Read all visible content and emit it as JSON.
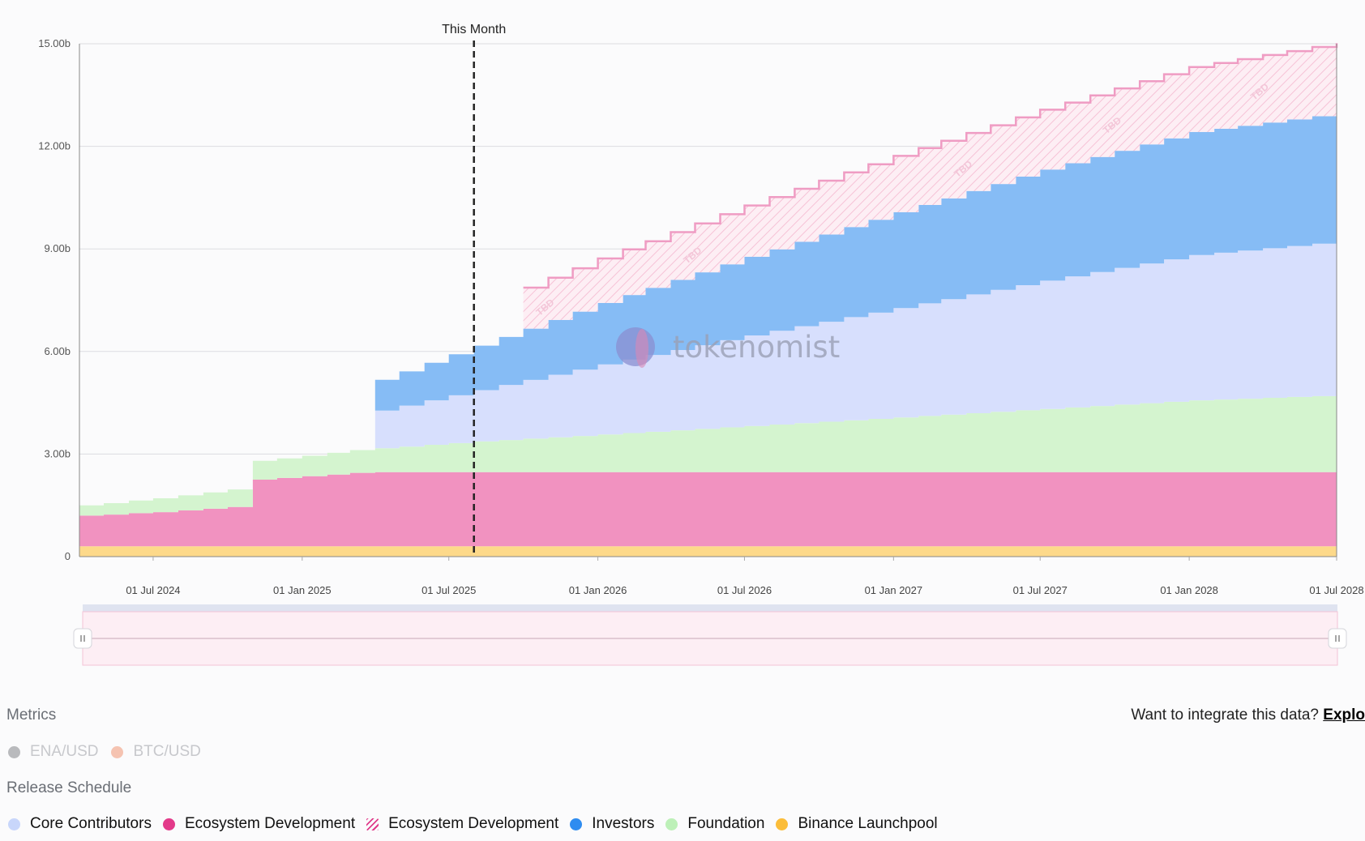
{
  "chart_data": {
    "type": "area",
    "stacked": true,
    "x_ticks": [
      "01 Jul 2024",
      "01 Jan 2025",
      "01 Jul 2025",
      "01 Jan 2026",
      "01 Jul 2026",
      "01 Jan 2027",
      "01 Jul 2027",
      "01 Jan 2028",
      "01 Jul 2028"
    ],
    "y_ticks": [
      "0",
      "3.00b",
      "6.00b",
      "9.00b",
      "12.00b",
      "15.00b"
    ],
    "ylim": [
      0,
      15
    ],
    "y_unit": "billion tokens",
    "x_start": "2024-04-01",
    "x_end": "2028-07-01",
    "current_marker": {
      "label": "This Month",
      "date": "2025-08-01"
    },
    "watermark": "tokenomist",
    "tbd_label": "TBD",
    "grid": true,
    "series": [
      {
        "name": "Binance Launchpool",
        "color": "#fdd98a",
        "points": [
          [
            "2024-04-01",
            0.3
          ],
          [
            "2028-07-01",
            0.3
          ]
        ]
      },
      {
        "name": "Ecosystem Development",
        "color": "#f192c0",
        "points": [
          [
            "2024-04-01",
            0.9
          ],
          [
            "2024-05-01",
            0.93
          ],
          [
            "2024-06-01",
            0.97
          ],
          [
            "2024-07-01",
            1.0
          ],
          [
            "2024-08-01",
            1.05
          ],
          [
            "2024-09-01",
            1.1
          ],
          [
            "2024-10-01",
            1.15
          ],
          [
            "2024-11-01",
            1.95
          ],
          [
            "2024-12-01",
            2.0
          ],
          [
            "2025-01-01",
            2.05
          ],
          [
            "2025-02-01",
            2.1
          ],
          [
            "2025-03-01",
            2.15
          ],
          [
            "2025-04-01",
            2.17
          ],
          [
            "2028-07-01",
            2.17
          ]
        ]
      },
      {
        "name": "Foundation",
        "color": "#d4f4cf",
        "points": [
          [
            "2024-04-01",
            0.3
          ],
          [
            "2024-11-01",
            0.55
          ],
          [
            "2025-01-01",
            0.6
          ],
          [
            "2025-04-01",
            0.7
          ],
          [
            "2025-08-01",
            0.9
          ],
          [
            "2026-01-01",
            1.1
          ],
          [
            "2026-07-01",
            1.35
          ],
          [
            "2027-01-01",
            1.6
          ],
          [
            "2027-07-01",
            1.85
          ],
          [
            "2028-01-01",
            2.1
          ],
          [
            "2028-07-01",
            2.25
          ]
        ]
      },
      {
        "name": "Core Contributors",
        "color": "#d7dffd",
        "points": [
          [
            "2025-04-01",
            1.1
          ],
          [
            "2025-08-01",
            1.5
          ],
          [
            "2026-01-01",
            2.05
          ],
          [
            "2026-07-01",
            2.65
          ],
          [
            "2027-01-01",
            3.2
          ],
          [
            "2027-07-01",
            3.75
          ],
          [
            "2028-01-01",
            4.25
          ],
          [
            "2028-07-01",
            4.5
          ]
        ]
      },
      {
        "name": "Investors",
        "color": "#86bcf5",
        "points": [
          [
            "2025-04-01",
            0.9
          ],
          [
            "2025-08-01",
            1.3
          ],
          [
            "2026-01-01",
            1.8
          ],
          [
            "2026-07-01",
            2.3
          ],
          [
            "2027-01-01",
            2.8
          ],
          [
            "2027-07-01",
            3.25
          ],
          [
            "2028-01-01",
            3.6
          ],
          [
            "2028-07-01",
            3.75
          ]
        ]
      },
      {
        "name": "Ecosystem Development",
        "color": "#f192c0",
        "projected": true,
        "points": [
          [
            "2025-10-01",
            1.2
          ],
          [
            "2026-01-01",
            1.3
          ],
          [
            "2026-07-01",
            1.5
          ],
          [
            "2027-01-01",
            1.65
          ],
          [
            "2027-07-01",
            1.75
          ],
          [
            "2028-01-01",
            1.9
          ],
          [
            "2028-07-01",
            2.05
          ]
        ]
      }
    ]
  },
  "metrics": {
    "title": "Metrics",
    "items": [
      {
        "label": "ENA/USD",
        "color": "#b9babd"
      },
      {
        "label": "BTC/USD",
        "color": "#f5c3b1"
      }
    ]
  },
  "integrate": {
    "text": "Want to integrate this data?",
    "link": "Explo"
  },
  "release_schedule": {
    "title": "Release Schedule",
    "items": [
      {
        "label": "Core Contributors",
        "color": "#c8d6fb",
        "style": "dot"
      },
      {
        "label": "Ecosystem Development",
        "color": "#e33a8a",
        "style": "dot"
      },
      {
        "label": "Ecosystem Development",
        "color": "#e33a8a",
        "style": "hatch"
      },
      {
        "label": "Investors",
        "color": "#2f8cf0",
        "style": "dot"
      },
      {
        "label": "Foundation",
        "color": "#bdf0b8",
        "style": "dot"
      },
      {
        "label": "Binance Launchpool",
        "color": "#fbbd3a",
        "style": "dot"
      }
    ]
  }
}
